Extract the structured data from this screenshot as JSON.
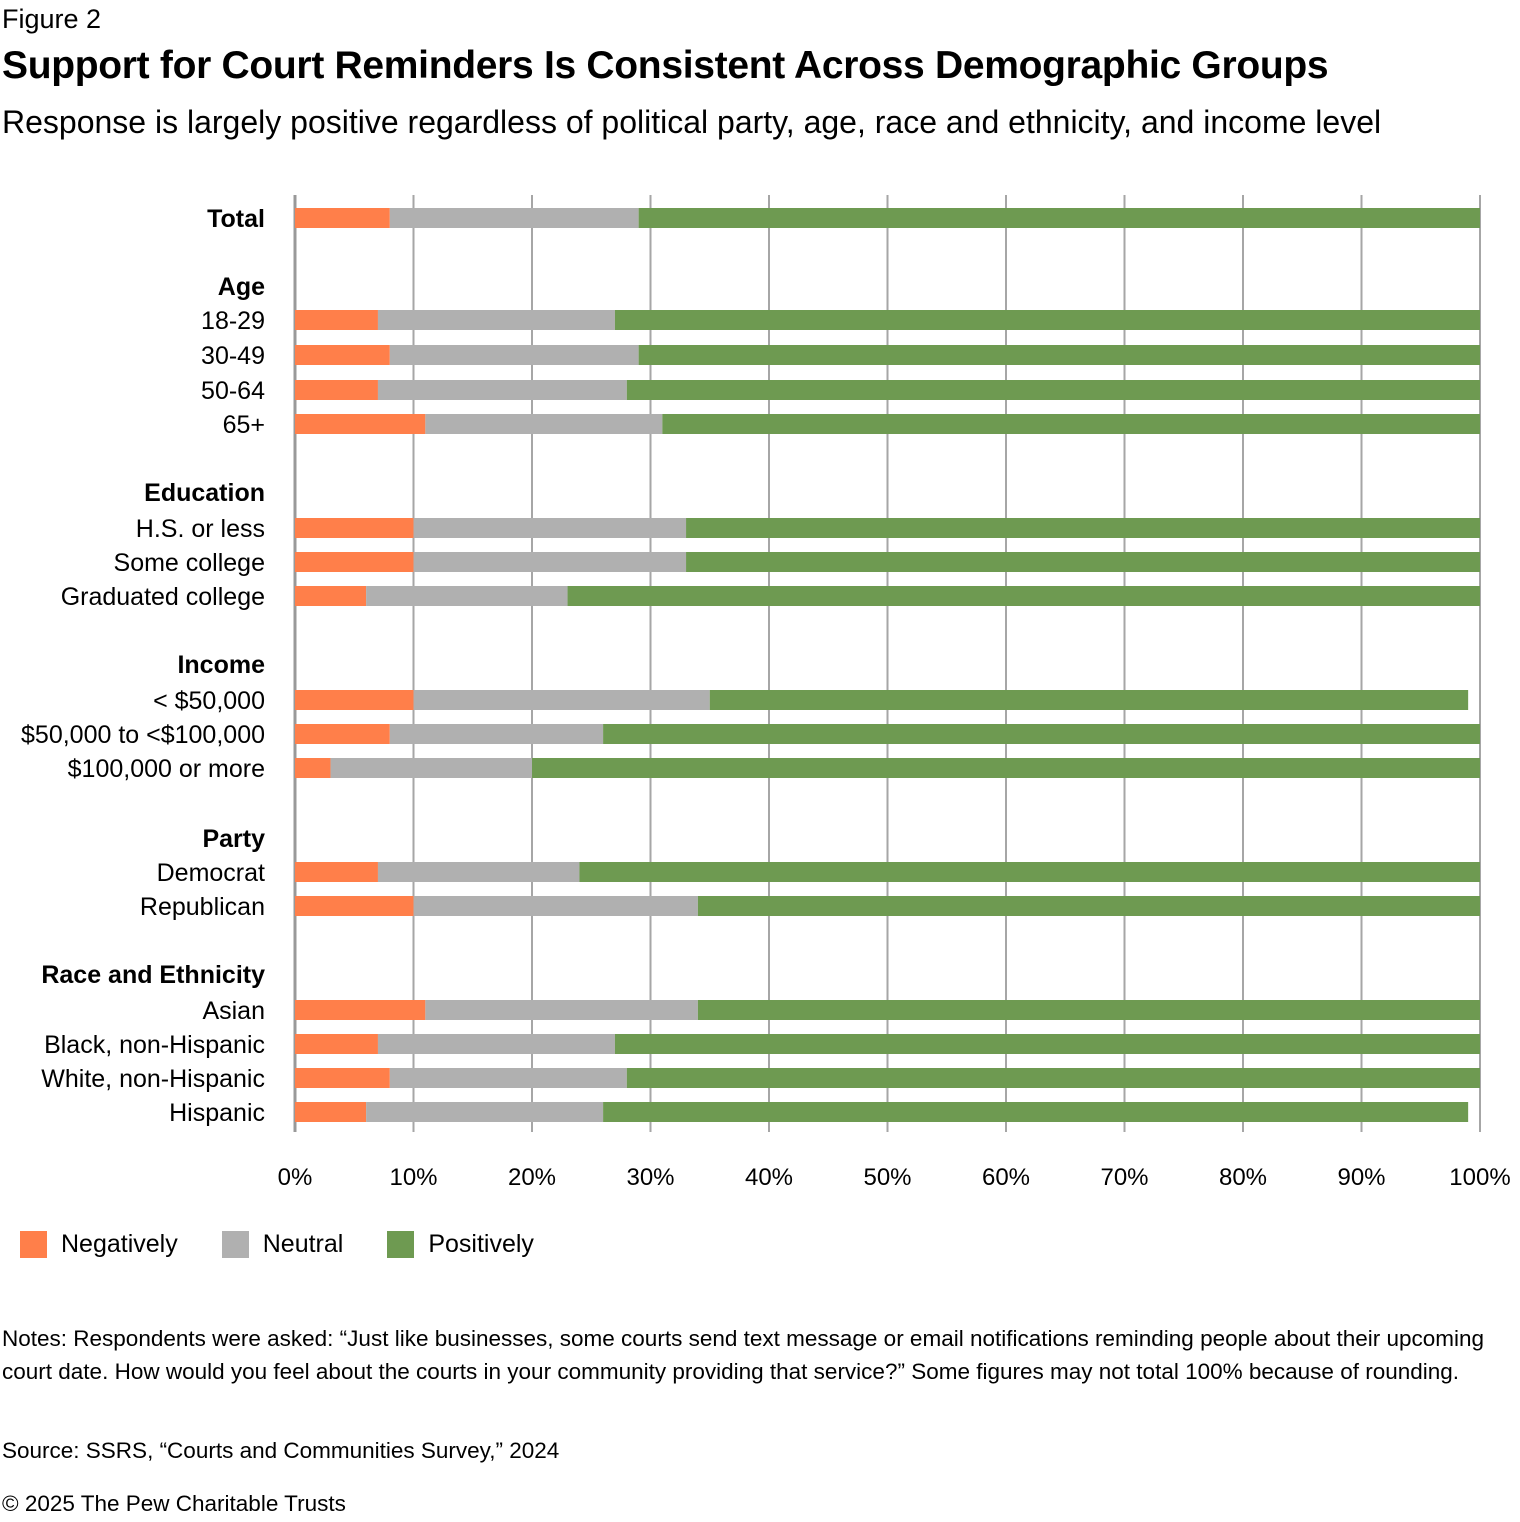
{
  "figure_label": "Figure 2",
  "chart_data": {
    "type": "bar",
    "orientation": "horizontal",
    "stacked": true,
    "title": "Support for Court Reminders Is Consistent Across Demographic Groups",
    "subtitle": "Response is largely positive regardless of political party, age, race and ethnicity, and income level",
    "xlabel": "",
    "ylabel": "",
    "xlim": [
      0,
      100
    ],
    "x_ticks": [
      "0%",
      "10%",
      "20%",
      "30%",
      "40%",
      "50%",
      "60%",
      "70%",
      "80%",
      "90%",
      "100%"
    ],
    "grid": true,
    "legend_position": "bottom-left",
    "series": [
      {
        "name": "Negatively",
        "color": "#FF7F4A"
      },
      {
        "name": "Neutral",
        "color": "#B0B0B0"
      },
      {
        "name": "Positively",
        "color": "#6E9A51"
      }
    ],
    "rows": [
      {
        "label": "Total",
        "bold": true,
        "values": [
          8,
          21,
          71
        ]
      },
      {
        "label": "Age",
        "header": true
      },
      {
        "label": "18-29",
        "values": [
          7,
          20,
          73
        ]
      },
      {
        "label": "30-49",
        "values": [
          8,
          21,
          71
        ]
      },
      {
        "label": "50-64",
        "values": [
          7,
          21,
          72
        ]
      },
      {
        "label": "65+",
        "values": [
          11,
          20,
          69
        ]
      },
      {
        "label": "",
        "spacer": true
      },
      {
        "label": "Education",
        "header": true
      },
      {
        "label": "H.S. or less",
        "values": [
          10,
          23,
          67
        ]
      },
      {
        "label": "Some college",
        "values": [
          10,
          23,
          67
        ]
      },
      {
        "label": "Graduated college",
        "values": [
          6,
          17,
          77
        ]
      },
      {
        "label": "",
        "spacer": true
      },
      {
        "label": "Income",
        "header": true
      },
      {
        "label": "< $50,000",
        "values": [
          10,
          25,
          64
        ]
      },
      {
        "label": "$50,000 to <$100,000",
        "values": [
          8,
          18,
          74
        ]
      },
      {
        "label": "$100,000 or more",
        "values": [
          3,
          17,
          80
        ]
      },
      {
        "label": "",
        "spacer": true
      },
      {
        "label": "Party",
        "header": true
      },
      {
        "label": "Democrat",
        "values": [
          7,
          17,
          76
        ]
      },
      {
        "label": "Republican",
        "values": [
          10,
          24,
          66
        ]
      },
      {
        "label": "",
        "spacer": true
      },
      {
        "label": "Race and Ethnicity",
        "header": true
      },
      {
        "label": "Asian",
        "values": [
          11,
          23,
          66
        ]
      },
      {
        "label": "Black, non-Hispanic",
        "values": [
          7,
          20,
          73
        ]
      },
      {
        "label": "White, non-Hispanic",
        "values": [
          8,
          20,
          72
        ]
      },
      {
        "label": "Hispanic",
        "values": [
          6,
          20,
          73
        ]
      }
    ]
  },
  "notes": "Notes: Respondents were asked: “Just like businesses, some courts send text message or email notifications reminding people about their upcoming court date. How would you feel about the courts in your community providing that service?” Some figures may not total 100% because of rounding.",
  "source": "Source: SSRS, “Courts and Communities Survey,” 2024",
  "copyright": "© 2025 The Pew Charitable Trusts"
}
